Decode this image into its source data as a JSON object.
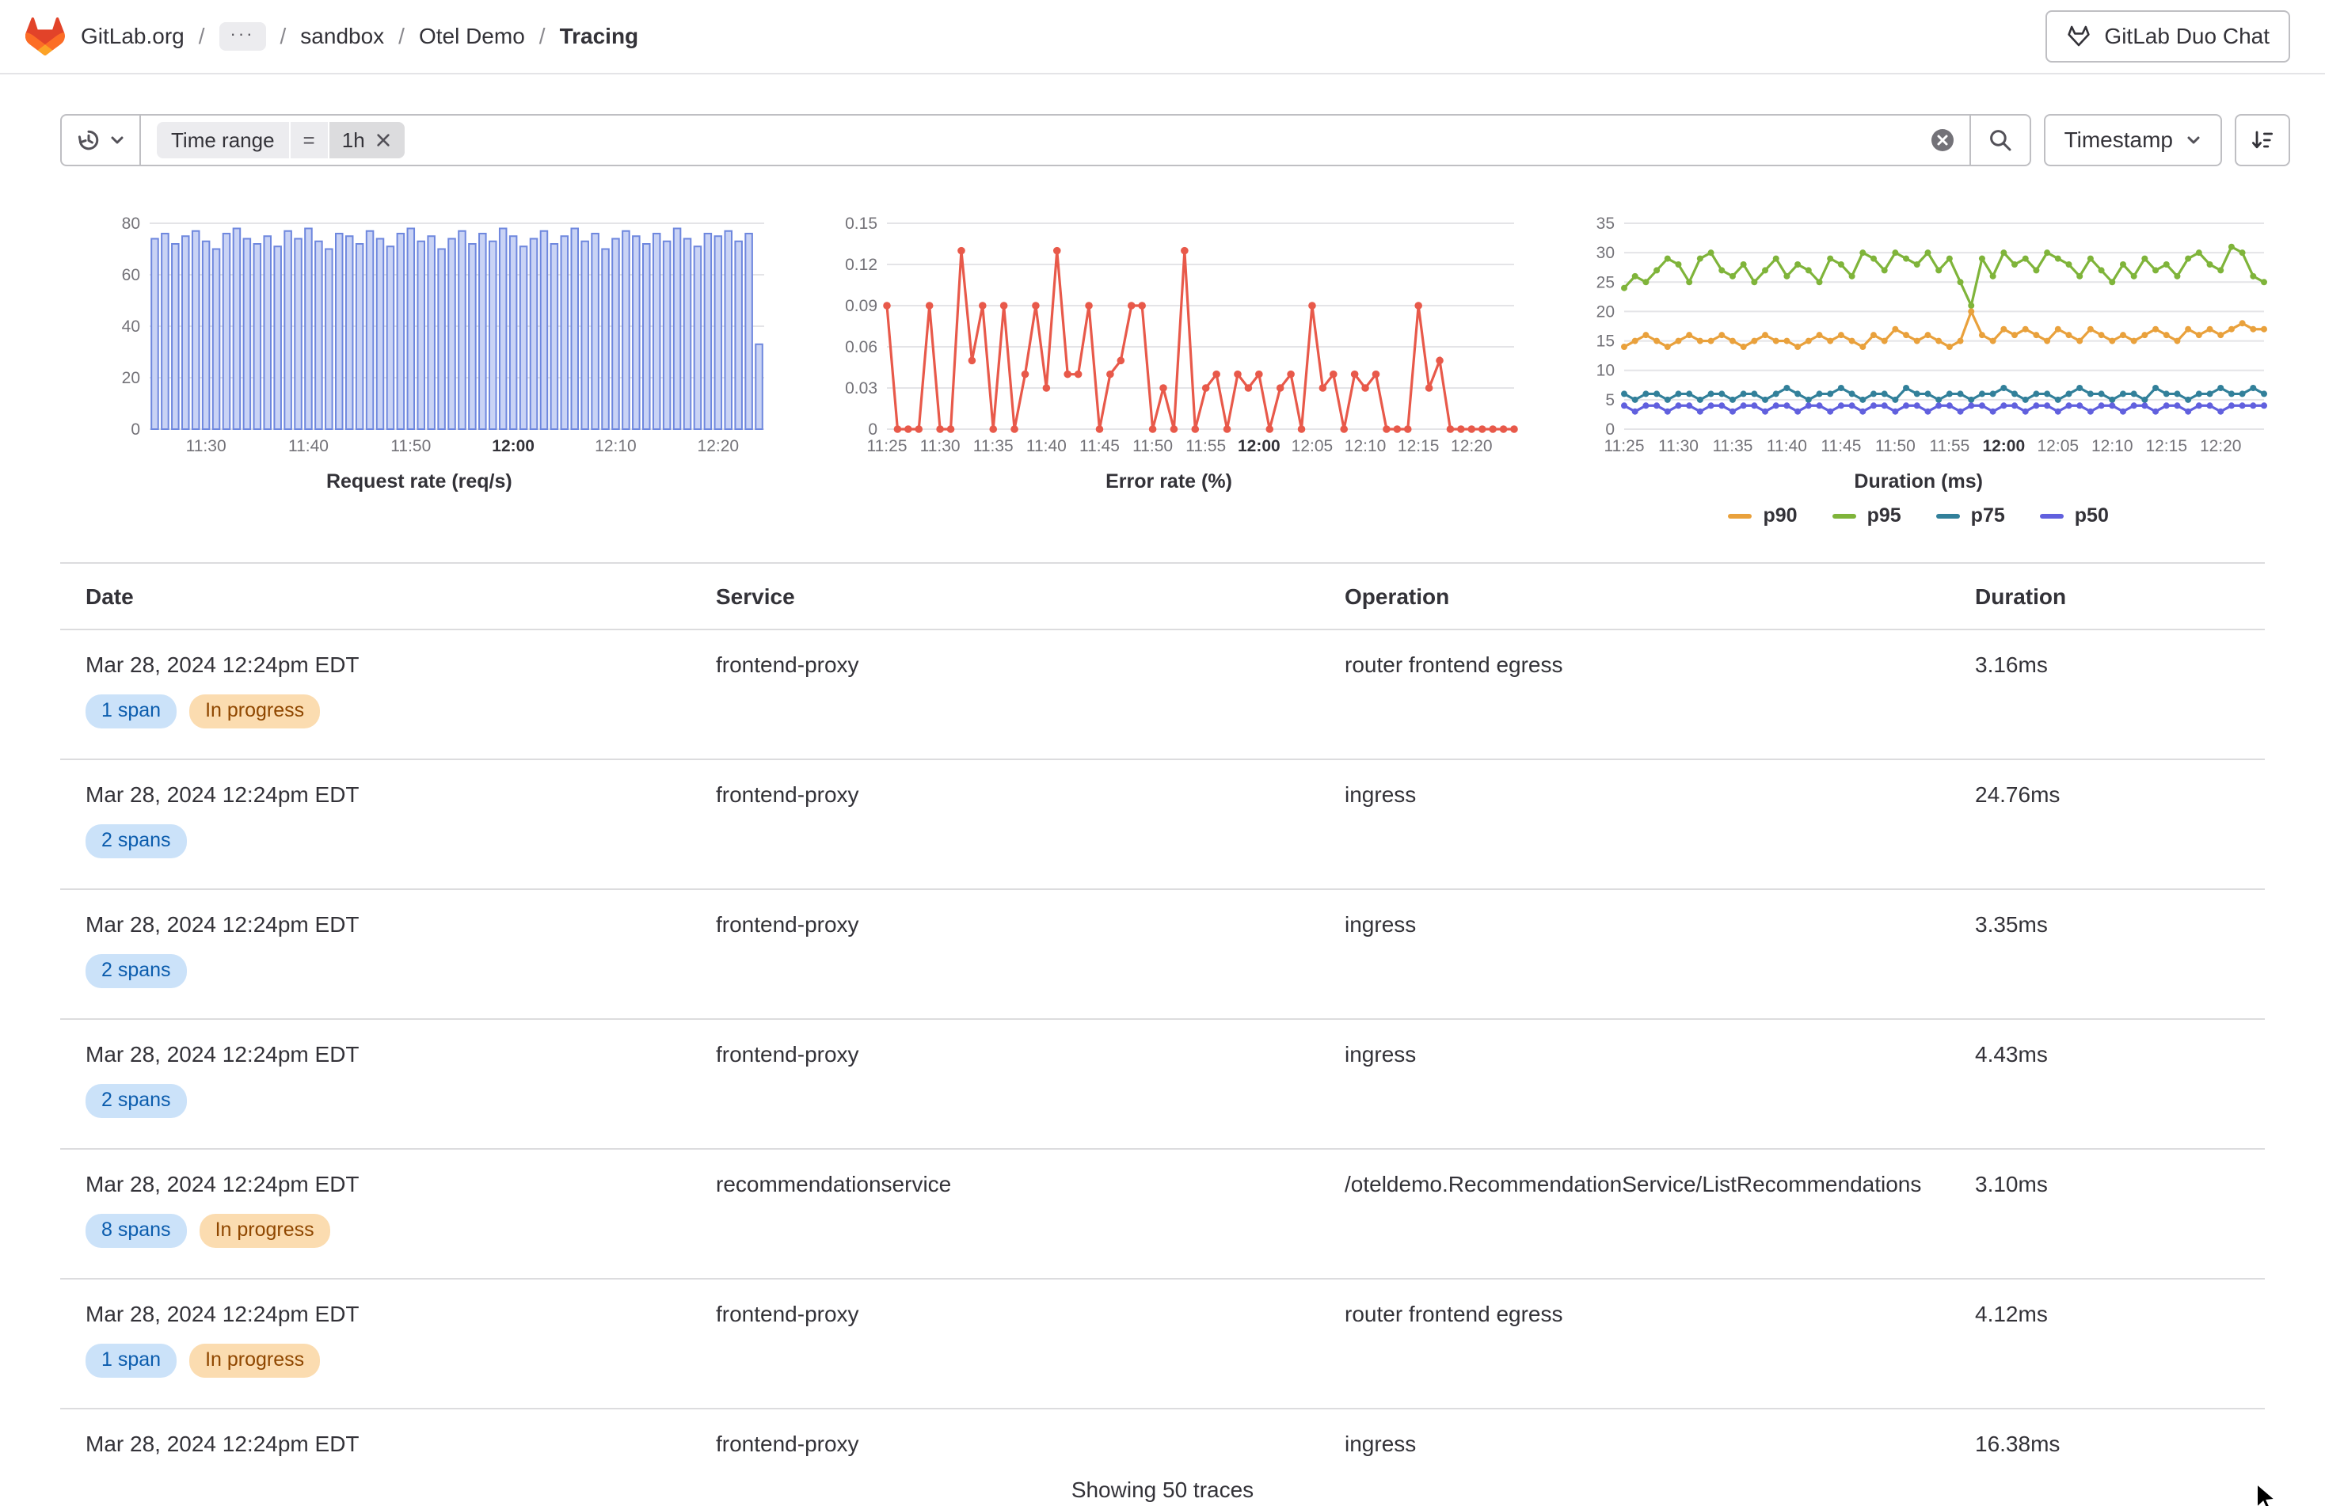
{
  "topbar": {
    "separator": "/",
    "crumbs": [
      {
        "label": "GitLab.org"
      },
      {
        "label": "···",
        "type": "ellipsis"
      },
      {
        "label": "sandbox"
      },
      {
        "label": "Otel Demo"
      },
      {
        "label": "Tracing",
        "current": true
      }
    ],
    "duo_chat_label": "GitLab Duo Chat"
  },
  "filter_bar": {
    "token": {
      "key": "Time range",
      "operator": "=",
      "value": "1h"
    },
    "sort_button_label": "Timestamp"
  },
  "icons": {
    "gitlab-logo": "tanuki",
    "history-icon": "clock-counterclockwise",
    "chevron-down-icon": "⌄",
    "close-icon": "×",
    "clear-icon": "⊗ gray circle white x",
    "search-icon": "magnifier",
    "sort-direction-icon": "arrow-down with decreasing bars",
    "duo-chat-icon": "tanuki-outline",
    "mouse-cursor": "black arrow pointer"
  },
  "colors": {
    "brand_red": "#e24329",
    "brand_orange": "#fc6d26",
    "brand_yellow": "#fca326",
    "badge_info_bg": "#cbe2f9",
    "badge_info_text": "#0b5cad",
    "badge_warning_bg": "#fbdcb0",
    "badge_warning_text": "#8f4700",
    "border": "#bfbfc3",
    "grid": "#e4e4e7"
  },
  "chart_data": [
    {
      "type": "bar",
      "name": "request-rate",
      "title": "Request rate (req/s)",
      "ylim": [
        0,
        80
      ],
      "yticks": [
        0,
        20,
        40,
        60,
        80
      ],
      "grid": true,
      "legend_position": "none",
      "bar_fill": "#c9d3f5",
      "bar_stroke": "#6e87de",
      "x": [
        "11:25",
        "11:26",
        "11:27",
        "11:28",
        "11:29",
        "11:30",
        "11:31",
        "11:32",
        "11:33",
        "11:34",
        "11:35",
        "11:36",
        "11:37",
        "11:38",
        "11:39",
        "11:40",
        "11:41",
        "11:42",
        "11:43",
        "11:44",
        "11:45",
        "11:46",
        "11:47",
        "11:48",
        "11:49",
        "11:50",
        "11:51",
        "11:52",
        "11:53",
        "11:54",
        "11:55",
        "11:56",
        "11:57",
        "11:58",
        "11:59",
        "12:00",
        "12:01",
        "12:02",
        "12:03",
        "12:04",
        "12:05",
        "12:06",
        "12:07",
        "12:08",
        "12:09",
        "12:10",
        "12:11",
        "12:12",
        "12:13",
        "12:14",
        "12:15",
        "12:16",
        "12:17",
        "12:18",
        "12:19",
        "12:20",
        "12:21",
        "12:22",
        "12:23",
        "12:24"
      ],
      "xticks": [
        "11:30",
        "11:40",
        "11:50",
        "12:00",
        "12:10",
        "12:20"
      ],
      "bold_xtick": "12:00",
      "values": [
        74,
        76,
        72,
        75,
        77,
        73,
        70,
        76,
        78,
        74,
        72,
        75,
        71,
        77,
        74,
        78,
        73,
        70,
        76,
        75,
        72,
        77,
        74,
        71,
        76,
        78,
        73,
        75,
        70,
        74,
        77,
        72,
        76,
        73,
        78,
        75,
        71,
        74,
        77,
        72,
        75,
        78,
        73,
        76,
        70,
        74,
        77,
        75,
        72,
        76,
        73,
        78,
        74,
        71,
        76,
        75,
        77,
        73,
        76,
        33
      ]
    },
    {
      "type": "line",
      "name": "error-rate",
      "title": "Error rate (%)",
      "ylim": [
        0,
        0.15
      ],
      "yticks": [
        0,
        0.03,
        0.06,
        0.09,
        0.12,
        0.15
      ],
      "grid": true,
      "legend_position": "none",
      "marker_r": 2.4,
      "x": [
        "11:25",
        "11:26",
        "11:27",
        "11:28",
        "11:29",
        "11:30",
        "11:31",
        "11:32",
        "11:33",
        "11:34",
        "11:35",
        "11:36",
        "11:37",
        "11:38",
        "11:39",
        "11:40",
        "11:41",
        "11:42",
        "11:43",
        "11:44",
        "11:45",
        "11:46",
        "11:47",
        "11:48",
        "11:49",
        "11:50",
        "11:51",
        "11:52",
        "11:53",
        "11:54",
        "11:55",
        "11:56",
        "11:57",
        "11:58",
        "11:59",
        "12:00",
        "12:01",
        "12:02",
        "12:03",
        "12:04",
        "12:05",
        "12:06",
        "12:07",
        "12:08",
        "12:09",
        "12:10",
        "12:11",
        "12:12",
        "12:13",
        "12:14",
        "12:15",
        "12:16",
        "12:17",
        "12:18",
        "12:19",
        "12:20",
        "12:21",
        "12:22",
        "12:23",
        "12:24"
      ],
      "xticks": [
        "11:25",
        "11:30",
        "11:35",
        "11:40",
        "11:45",
        "11:50",
        "11:55",
        "12:00",
        "12:05",
        "12:10",
        "12:15",
        "12:20"
      ],
      "bold_xtick": "12:00",
      "series": [
        {
          "name": "error rate",
          "color": "#e8594a",
          "values": [
            0.09,
            0,
            0,
            0,
            0.09,
            0,
            0,
            0.13,
            0.05,
            0.09,
            0,
            0.09,
            0,
            0.04,
            0.09,
            0.03,
            0.13,
            0.04,
            0.04,
            0.09,
            0,
            0.04,
            0.05,
            0.09,
            0.09,
            0,
            0.03,
            0,
            0.13,
            0,
            0.03,
            0.04,
            0,
            0.04,
            0.03,
            0.04,
            0,
            0.03,
            0.04,
            0,
            0.09,
            0.03,
            0.04,
            0,
            0.04,
            0.03,
            0.04,
            0,
            0,
            0,
            0.09,
            0.03,
            0.05,
            0,
            0,
            0,
            0,
            0,
            0,
            0
          ]
        }
      ]
    },
    {
      "type": "line",
      "name": "duration",
      "title": "Duration (ms)",
      "ylim": [
        0,
        35
      ],
      "yticks": [
        0,
        5,
        10,
        15,
        20,
        25,
        30,
        35
      ],
      "grid": true,
      "legend_position": "bottom",
      "legend": [
        "p90",
        "p95",
        "p75",
        "p50"
      ],
      "marker_r": 2,
      "x": [
        "11:25",
        "11:26",
        "11:27",
        "11:28",
        "11:29",
        "11:30",
        "11:31",
        "11:32",
        "11:33",
        "11:34",
        "11:35",
        "11:36",
        "11:37",
        "11:38",
        "11:39",
        "11:40",
        "11:41",
        "11:42",
        "11:43",
        "11:44",
        "11:45",
        "11:46",
        "11:47",
        "11:48",
        "11:49",
        "11:50",
        "11:51",
        "11:52",
        "11:53",
        "11:54",
        "11:55",
        "11:56",
        "11:57",
        "11:58",
        "11:59",
        "12:00",
        "12:01",
        "12:02",
        "12:03",
        "12:04",
        "12:05",
        "12:06",
        "12:07",
        "12:08",
        "12:09",
        "12:10",
        "12:11",
        "12:12",
        "12:13",
        "12:14",
        "12:15",
        "12:16",
        "12:17",
        "12:18",
        "12:19",
        "12:20",
        "12:21",
        "12:22",
        "12:23",
        "12:24"
      ],
      "xticks": [
        "11:25",
        "11:30",
        "11:35",
        "11:40",
        "11:45",
        "11:50",
        "11:55",
        "12:00",
        "12:05",
        "12:10",
        "12:15",
        "12:20"
      ],
      "bold_xtick": "12:00",
      "series": [
        {
          "name": "p95",
          "color": "#7fb43a",
          "values": [
            24,
            26,
            25,
            27,
            29,
            28,
            25,
            29,
            30,
            27,
            26,
            28,
            25,
            27,
            29,
            26,
            28,
            27,
            25,
            29,
            28,
            26,
            30,
            29,
            27,
            30,
            29,
            28,
            30,
            27,
            29,
            25,
            21,
            29,
            26,
            30,
            28,
            29,
            27,
            30,
            29,
            28,
            26,
            29,
            27,
            25,
            28,
            26,
            29,
            27,
            28,
            26,
            29,
            30,
            28,
            27,
            31,
            30,
            26,
            25
          ]
        },
        {
          "name": "p90",
          "color": "#e9a13c",
          "values": [
            14,
            15,
            16,
            15,
            14,
            15,
            16,
            15,
            15,
            16,
            15,
            14,
            15,
            16,
            15,
            15,
            14,
            15,
            16,
            15,
            16,
            15,
            14,
            16,
            15,
            17,
            16,
            15,
            16,
            15,
            14,
            15,
            20,
            16,
            15,
            17,
            16,
            17,
            16,
            15,
            17,
            16,
            15,
            17,
            16,
            15,
            16,
            15,
            16,
            17,
            16,
            15,
            17,
            16,
            17,
            16,
            17,
            18,
            17,
            17
          ]
        },
        {
          "name": "p75",
          "color": "#32809a",
          "values": [
            6,
            5,
            6,
            6,
            5,
            6,
            6,
            5,
            6,
            6,
            5,
            6,
            6,
            5,
            6,
            7,
            6,
            5,
            6,
            6,
            7,
            6,
            5,
            6,
            6,
            5,
            7,
            6,
            6,
            5,
            6,
            6,
            5,
            6,
            6,
            7,
            6,
            5,
            6,
            6,
            5,
            6,
            7,
            6,
            6,
            5,
            6,
            6,
            5,
            7,
            6,
            6,
            5,
            6,
            6,
            7,
            6,
            6,
            7,
            6
          ]
        },
        {
          "name": "p50",
          "color": "#6160de",
          "values": [
            4,
            3,
            4,
            4,
            3,
            4,
            4,
            3,
            4,
            4,
            3,
            4,
            4,
            3,
            4,
            4,
            3,
            4,
            4,
            3,
            4,
            4,
            3,
            4,
            4,
            3,
            4,
            4,
            3,
            4,
            4,
            3,
            4,
            4,
            3,
            4,
            4,
            3,
            4,
            4,
            3,
            4,
            4,
            3,
            4,
            4,
            3,
            4,
            4,
            3,
            4,
            4,
            3,
            4,
            4,
            3,
            4,
            4,
            4,
            4
          ]
        }
      ]
    }
  ],
  "table": {
    "columns": [
      "Date",
      "Service",
      "Operation",
      "Duration"
    ],
    "rows": [
      {
        "date": "Mar 28, 2024 12:24pm EDT",
        "badges": [
          {
            "label": "1 span",
            "type": "info"
          },
          {
            "label": "In progress",
            "type": "warning"
          }
        ],
        "service": "frontend-proxy",
        "operation": "router frontend egress",
        "duration": "3.16ms"
      },
      {
        "date": "Mar 28, 2024 12:24pm EDT",
        "badges": [
          {
            "label": "2 spans",
            "type": "info"
          }
        ],
        "service": "frontend-proxy",
        "operation": "ingress",
        "duration": "24.76ms"
      },
      {
        "date": "Mar 28, 2024 12:24pm EDT",
        "badges": [
          {
            "label": "2 spans",
            "type": "info"
          }
        ],
        "service": "frontend-proxy",
        "operation": "ingress",
        "duration": "3.35ms"
      },
      {
        "date": "Mar 28, 2024 12:24pm EDT",
        "badges": [
          {
            "label": "2 spans",
            "type": "info"
          }
        ],
        "service": "frontend-proxy",
        "operation": "ingress",
        "duration": "4.43ms"
      },
      {
        "date": "Mar 28, 2024 12:24pm EDT",
        "badges": [
          {
            "label": "8 spans",
            "type": "info"
          },
          {
            "label": "In progress",
            "type": "warning"
          }
        ],
        "service": "recommendationservice",
        "operation": "/oteldemo.RecommendationService/ListRecommendations",
        "duration": "3.10ms"
      },
      {
        "date": "Mar 28, 2024 12:24pm EDT",
        "badges": [
          {
            "label": "1 span",
            "type": "info"
          },
          {
            "label": "In progress",
            "type": "warning"
          }
        ],
        "service": "frontend-proxy",
        "operation": "router frontend egress",
        "duration": "4.12ms"
      },
      {
        "date": "Mar 28, 2024 12:24pm EDT",
        "badges": [],
        "service": "frontend-proxy",
        "operation": "ingress",
        "duration": "16.38ms"
      }
    ],
    "footer": "Showing 50 traces"
  }
}
